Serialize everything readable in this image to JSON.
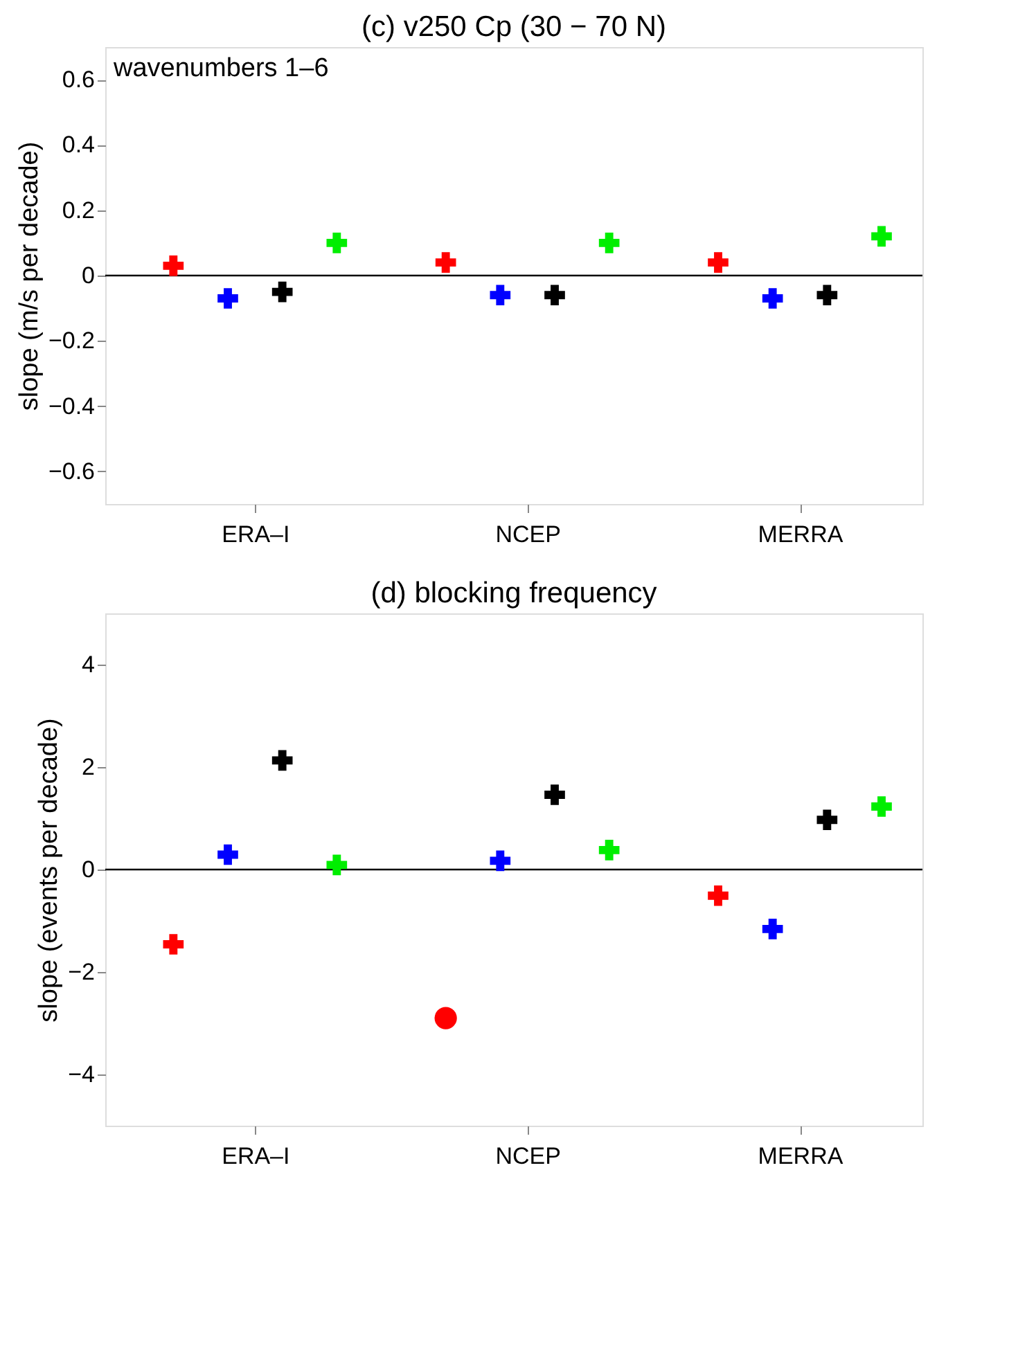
{
  "chart_data": [
    {
      "type": "scatter",
      "title": "(c) v250 Cp (30 − 70 N)",
      "ylabel": "slope (m/s per decade)",
      "annotations": [
        "wavenumbers 1–6"
      ],
      "marker": "cross",
      "categories": [
        null,
        null,
        null,
        null,
        null,
        "ERA–I",
        null,
        null,
        null,
        null,
        null,
        null,
        null,
        null,
        null,
        "NCEP",
        null,
        null,
        null,
        null,
        null,
        null,
        null,
        null,
        null,
        "MERRA",
        null,
        null,
        null,
        null
      ],
      "ylim": [
        -0.7,
        0.7
      ],
      "yticks": [
        -0.6,
        -0.4,
        -0.2,
        0,
        0.2,
        0.4,
        0.6
      ],
      "ref_lines": [
        {
          "axis": "y",
          "value": 0,
          "color": "#000000"
        }
      ],
      "series": [
        {
          "color": "#ff0000",
          "values": [
            null,
            null,
            0.03,
            null,
            null,
            null,
            null,
            null,
            null,
            null,
            null,
            null,
            0.04,
            null,
            null,
            null,
            null,
            null,
            null,
            null,
            null,
            null,
            0.04,
            null,
            null,
            null,
            null,
            null,
            null,
            null
          ]
        },
        {
          "color": "#0000ff",
          "values": [
            null,
            null,
            null,
            null,
            -0.07,
            null,
            null,
            null,
            null,
            null,
            null,
            null,
            null,
            null,
            -0.06,
            null,
            null,
            null,
            null,
            null,
            null,
            null,
            null,
            null,
            -0.07,
            null,
            null,
            null,
            null,
            null
          ]
        },
        {
          "color": "#000000",
          "values": [
            null,
            null,
            null,
            null,
            null,
            null,
            -0.05,
            null,
            null,
            null,
            null,
            null,
            null,
            null,
            null,
            null,
            -0.06,
            null,
            null,
            null,
            null,
            null,
            null,
            null,
            null,
            null,
            -0.06,
            null,
            null,
            null
          ]
        },
        {
          "color": "#00ee00",
          "values": [
            null,
            null,
            null,
            null,
            null,
            null,
            null,
            null,
            0.1,
            null,
            null,
            null,
            null,
            null,
            null,
            null,
            null,
            null,
            0.1,
            null,
            null,
            null,
            null,
            null,
            null,
            null,
            null,
            null,
            0.12,
            null
          ]
        }
      ]
    },
    {
      "type": "scatter",
      "title": "(d) blocking frequency",
      "ylabel": "slope (events per decade)",
      "marker": "cross",
      "categories": [
        null,
        null,
        null,
        null,
        null,
        "ERA–I",
        null,
        null,
        null,
        null,
        null,
        null,
        null,
        null,
        null,
        "NCEP",
        null,
        null,
        null,
        null,
        null,
        null,
        null,
        null,
        null,
        "MERRA",
        null,
        null,
        null,
        null
      ],
      "ylim": [
        -5,
        5
      ],
      "yticks": [
        -4,
        -2,
        0,
        2,
        4
      ],
      "ref_lines": [
        {
          "axis": "y",
          "value": 0,
          "color": "#000000"
        }
      ],
      "series": [
        {
          "color": "#ff0000",
          "values": [
            null,
            null,
            -1.46,
            null,
            null,
            null,
            null,
            null,
            null,
            null,
            null,
            null,
            null,
            null,
            null,
            null,
            null,
            null,
            null,
            null,
            null,
            null,
            -0.51,
            null,
            null,
            null,
            null,
            null,
            null,
            null
          ]
        },
        {
          "color": "#0000ff",
          "values": [
            null,
            null,
            null,
            null,
            0.29,
            null,
            null,
            null,
            null,
            null,
            null,
            null,
            null,
            null,
            0.17,
            null,
            null,
            null,
            null,
            null,
            null,
            null,
            null,
            null,
            -1.16,
            null,
            null,
            null,
            null,
            null
          ]
        },
        {
          "color": "#000000",
          "values": [
            null,
            null,
            null,
            null,
            null,
            null,
            2.13,
            null,
            null,
            null,
            null,
            null,
            null,
            null,
            null,
            null,
            1.46,
            null,
            null,
            null,
            null,
            null,
            null,
            null,
            null,
            null,
            0.97,
            null,
            null,
            null
          ]
        },
        {
          "color": "#00ee00",
          "values": [
            null,
            null,
            null,
            null,
            null,
            null,
            null,
            null,
            0.09,
            null,
            null,
            null,
            null,
            null,
            null,
            null,
            null,
            null,
            0.38,
            null,
            null,
            null,
            null,
            null,
            null,
            null,
            null,
            null,
            1.23,
            null
          ]
        },
        {
          "color": "#ff0000",
          "marker": "circle",
          "values": [
            null,
            null,
            null,
            null,
            null,
            null,
            null,
            null,
            null,
            null,
            null,
            null,
            -2.9,
            null,
            null,
            null,
            null,
            null,
            null,
            null,
            null,
            null,
            null,
            null,
            null,
            null,
            null,
            null,
            null,
            null
          ]
        }
      ]
    }
  ]
}
